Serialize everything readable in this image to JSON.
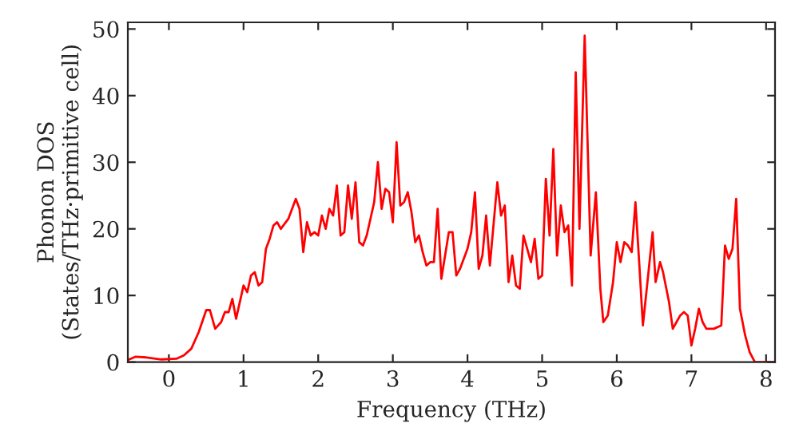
{
  "chart_data": {
    "type": "line",
    "xlabel": "Frequency (THz)",
    "ylabel": "Phonon DOS\n(States/THz·primitive cell)",
    "xlim": [
      -0.55,
      8.12
    ],
    "ylim": [
      0,
      51
    ],
    "xticks": [
      0,
      1,
      2,
      3,
      4,
      5,
      6,
      7,
      8
    ],
    "yticks": [
      0,
      10,
      20,
      30,
      40,
      50
    ],
    "grid": false,
    "legend": false,
    "series": [
      {
        "color": "#ff0000",
        "x": [
          -0.55,
          -0.45,
          -0.3,
          -0.1,
          0.1,
          0.2,
          0.3,
          0.4,
          0.5,
          0.55,
          0.62,
          0.7,
          0.75,
          0.8,
          0.85,
          0.9,
          1.0,
          1.05,
          1.1,
          1.15,
          1.2,
          1.25,
          1.3,
          1.35,
          1.4,
          1.45,
          1.5,
          1.6,
          1.7,
          1.75,
          1.8,
          1.85,
          1.9,
          1.95,
          2.0,
          2.05,
          2.1,
          2.15,
          2.2,
          2.25,
          2.3,
          2.35,
          2.4,
          2.45,
          2.5,
          2.55,
          2.6,
          2.65,
          2.7,
          2.75,
          2.8,
          2.85,
          2.9,
          2.95,
          3.0,
          3.05,
          3.1,
          3.15,
          3.2,
          3.25,
          3.3,
          3.35,
          3.4,
          3.45,
          3.5,
          3.55,
          3.6,
          3.65,
          3.7,
          3.75,
          3.8,
          3.85,
          3.9,
          4.0,
          4.05,
          4.1,
          4.15,
          4.2,
          4.25,
          4.3,
          4.4,
          4.45,
          4.5,
          4.55,
          4.6,
          4.65,
          4.7,
          4.75,
          4.8,
          4.85,
          4.9,
          4.95,
          5.0,
          5.05,
          5.1,
          5.15,
          5.2,
          5.25,
          5.3,
          5.35,
          5.4,
          5.45,
          5.5,
          5.57,
          5.65,
          5.72,
          5.78,
          5.82,
          5.88,
          5.95,
          6.0,
          6.05,
          6.1,
          6.15,
          6.2,
          6.25,
          6.3,
          6.35,
          6.42,
          6.48,
          6.52,
          6.58,
          6.62,
          6.7,
          6.75,
          6.8,
          6.85,
          6.9,
          6.95,
          7.0,
          7.05,
          7.1,
          7.15,
          7.2,
          7.3,
          7.4,
          7.45,
          7.5,
          7.55,
          7.6,
          7.65,
          7.72,
          7.78,
          7.85,
          8.12
        ],
        "values": [
          0.3,
          0.8,
          0.7,
          0.4,
          0.5,
          1,
          2,
          4.5,
          7.8,
          7.8,
          5,
          6,
          7.5,
          7.5,
          9.5,
          6.5,
          11.5,
          10.5,
          13,
          13.5,
          11.5,
          12,
          17,
          18.5,
          20.5,
          21,
          20,
          21.5,
          24.5,
          23,
          16.5,
          21,
          19,
          19.5,
          19,
          22,
          20,
          23,
          22,
          26.5,
          19,
          19.5,
          26.5,
          21.5,
          27,
          18,
          17.5,
          19,
          21.5,
          24,
          30,
          23,
          26,
          25.5,
          21,
          33,
          23.5,
          24,
          25.5,
          22.5,
          18,
          19,
          16.5,
          14.5,
          15,
          15,
          23,
          12.5,
          16,
          19.5,
          19.5,
          13,
          14,
          17,
          19.5,
          25.5,
          14,
          16,
          22,
          14.5,
          27,
          22,
          23.5,
          12,
          16,
          11.5,
          11,
          19,
          17,
          15,
          18.5,
          12.5,
          13,
          27.5,
          19,
          32,
          16,
          23.5,
          19.5,
          20.5,
          11.5,
          43.5,
          20,
          49,
          16,
          25.5,
          11,
          6,
          7,
          12,
          18,
          15,
          18,
          17.5,
          16.5,
          24,
          15,
          5.5,
          13,
          19.5,
          12,
          15,
          13.5,
          9,
          5,
          6,
          7,
          7.5,
          7,
          2.5,
          5,
          8,
          6,
          5,
          5,
          5.5,
          17.5,
          15.5,
          17,
          24.5,
          8,
          4,
          1.5,
          0,
          0
        ]
      }
    ]
  }
}
